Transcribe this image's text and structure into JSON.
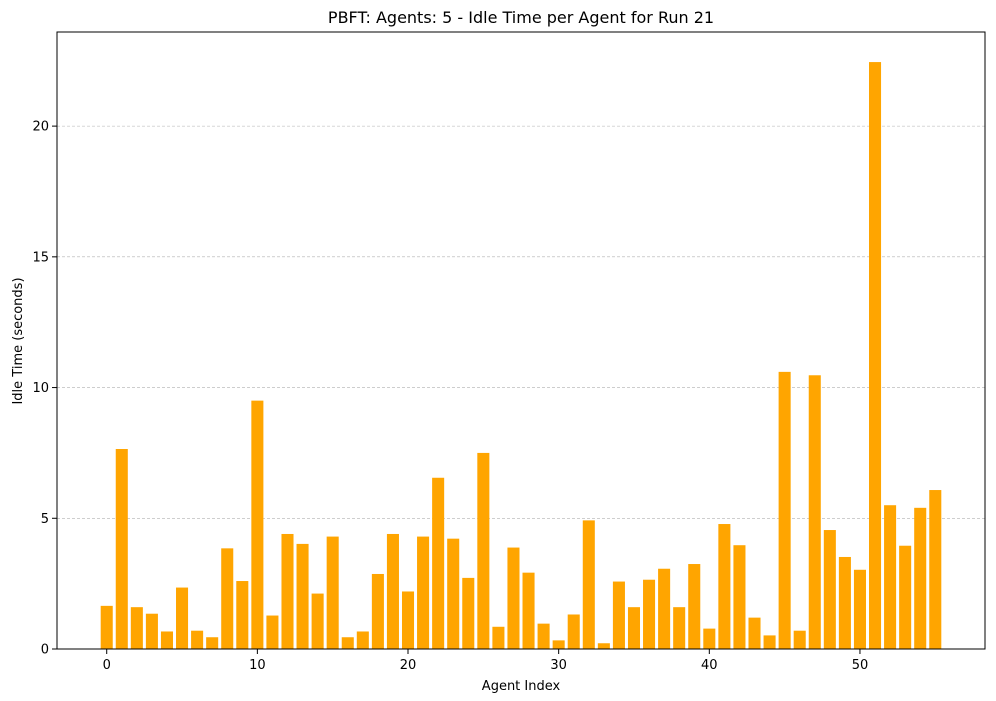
{
  "chart_data": {
    "type": "bar",
    "title": "PBFT: Agents: 5 - Idle Time per Agent for Run 21",
    "xlabel": "Agent Index",
    "ylabel": "Idle Time (seconds)",
    "bar_color": "#FFA500",
    "grid": "y-dashed",
    "xlim": [
      -3.3,
      58.3
    ],
    "ylim": [
      0,
      23.6
    ],
    "xticks": [
      "0",
      "10",
      "20",
      "30",
      "40",
      "50"
    ],
    "yticks": [
      "0",
      "5",
      "10",
      "15",
      "20"
    ],
    "x": [
      0,
      1,
      2,
      3,
      4,
      5,
      6,
      7,
      8,
      9,
      10,
      11,
      12,
      13,
      14,
      15,
      16,
      17,
      18,
      19,
      20,
      21,
      22,
      23,
      24,
      25,
      26,
      27,
      28,
      29,
      30,
      31,
      32,
      33,
      34,
      35,
      36,
      37,
      38,
      39,
      40,
      41,
      42,
      43,
      44,
      45,
      46,
      47,
      48,
      49,
      50,
      51,
      52,
      53,
      54,
      55
    ],
    "values": [
      1.65,
      7.65,
      1.6,
      1.35,
      0.67,
      2.35,
      0.7,
      0.45,
      3.85,
      2.6,
      9.5,
      1.28,
      4.4,
      4.02,
      2.12,
      4.3,
      0.45,
      0.67,
      2.87,
      4.4,
      2.2,
      4.3,
      6.55,
      4.22,
      2.72,
      7.5,
      0.85,
      3.88,
      2.92,
      0.97,
      0.33,
      1.32,
      4.92,
      0.22,
      2.58,
      1.6,
      2.65,
      3.07,
      1.6,
      3.25,
      0.78,
      4.78,
      3.97,
      1.2,
      0.52,
      10.6,
      0.7,
      10.47,
      4.55,
      3.52,
      3.03,
      22.45,
      5.5,
      3.95,
      5.4,
      6.08
    ]
  }
}
